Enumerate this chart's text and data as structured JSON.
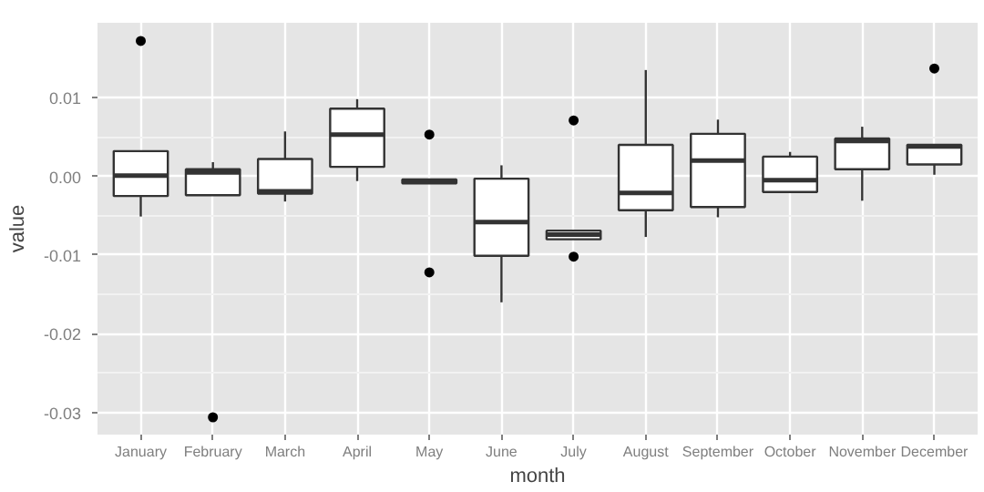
{
  "chart_data": {
    "type": "box",
    "xlabel": "month",
    "ylabel": "value",
    "grid": true,
    "categories": [
      "January",
      "February",
      "March",
      "April",
      "May",
      "June",
      "July",
      "August",
      "September",
      "October",
      "November",
      "December"
    ],
    "ylim": [
      -0.0328,
      0.0195
    ],
    "yticks": [
      {
        "value": -0.03,
        "label": "-0.03"
      },
      {
        "value": -0.02,
        "label": "-0.02"
      },
      {
        "value": -0.01,
        "label": "-0.01"
      },
      {
        "value": 0,
        "label": "0.00"
      },
      {
        "value": 0.01,
        "label": "0.01"
      }
    ],
    "boxes": [
      {
        "low": -0.0051,
        "q1": -0.0025,
        "median": 0.0001,
        "q3": 0.0032,
        "high": 0.0032,
        "outliers": [
          0.0172
        ]
      },
      {
        "low": -0.0024,
        "q1": -0.0024,
        "median": 0.0005,
        "q3": 0.0009,
        "high": 0.0018,
        "outliers": [
          -0.0306
        ]
      },
      {
        "low": -0.0032,
        "q1": -0.0022,
        "median": -0.0019,
        "q3": 0.0022,
        "high": 0.0057
      },
      {
        "low": -0.0006,
        "q1": 0.0012,
        "median": 0.0053,
        "q3": 0.0086,
        "high": 0.0098
      },
      {
        "low": -0.0009,
        "q1": -0.0009,
        "median": -0.0006,
        "q3": -0.0004,
        "high": -0.0004,
        "outliers": [
          0.0053,
          -0.0122
        ]
      },
      {
        "low": -0.016,
        "q1": -0.0101,
        "median": -0.0058,
        "q3": -0.0003,
        "high": 0.0014
      },
      {
        "low": -0.008,
        "q1": -0.008,
        "median": -0.0074,
        "q3": -0.0069,
        "high": -0.0069,
        "outliers": [
          0.0071,
          -0.0102
        ]
      },
      {
        "low": -0.0077,
        "q1": -0.0043,
        "median": -0.0021,
        "q3": 0.004,
        "high": 0.0135
      },
      {
        "low": -0.0052,
        "q1": -0.0039,
        "median": 0.002,
        "q3": 0.0054,
        "high": 0.0072
      },
      {
        "low": -0.002,
        "q1": -0.002,
        "median": -0.0005,
        "q3": 0.0025,
        "high": 0.0031
      },
      {
        "low": -0.0031,
        "q1": 0.0009,
        "median": 0.0045,
        "q3": 0.0048,
        "high": 0.0063
      },
      {
        "low": 0.0002,
        "q1": 0.0015,
        "median": 0.0038,
        "q3": 0.004,
        "high": 0.004,
        "outliers": [
          0.0137
        ]
      }
    ]
  }
}
